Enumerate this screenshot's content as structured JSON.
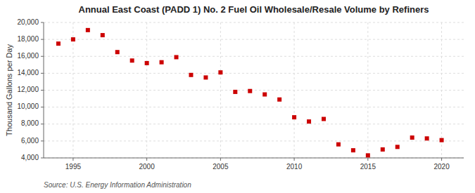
{
  "chart_data": {
    "type": "scatter",
    "title": "Annual East Coast (PADD 1) No. 2 Fuel Oil Wholesale/Resale Volume by Refiners",
    "ylabel": "Thousand Gallons per Day",
    "annotations": [
      "Source: U.S. Energy Information Administration"
    ],
    "x": [
      1994,
      1995,
      1996,
      1997,
      1998,
      1999,
      2000,
      2001,
      2002,
      2003,
      2004,
      2005,
      2006,
      2007,
      2008,
      2009,
      2010,
      2011,
      2012,
      2013,
      2014,
      2015,
      2016,
      2017,
      2018,
      2019,
      2020
    ],
    "values": [
      17500,
      18000,
      19100,
      18500,
      16500,
      15500,
      15200,
      15300,
      15900,
      13800,
      13500,
      14100,
      11800,
      11900,
      11500,
      10900,
      8800,
      8300,
      8600,
      5600,
      4900,
      4300,
      5000,
      5300,
      6400,
      6300,
      6100
    ],
    "color": "#cc0000",
    "marker": "square",
    "xlim": [
      1993.0,
      2021.5
    ],
    "xticks": [
      1995,
      2000,
      2005,
      2010,
      2015,
      2020
    ],
    "ylim": [
      4000,
      20000
    ],
    "yticks": [
      {
        "value": 4000,
        "label": "4,000"
      },
      {
        "value": 6000,
        "label": "6,000"
      },
      {
        "value": 8000,
        "label": "8,000"
      },
      {
        "value": 10000,
        "label": "10,000"
      },
      {
        "value": 12000,
        "label": "12,000"
      },
      {
        "value": 14000,
        "label": "14,000"
      },
      {
        "value": 16000,
        "label": "16,000"
      },
      {
        "value": 18000,
        "label": "18,000"
      },
      {
        "value": 20000,
        "label": "20,000"
      }
    ],
    "grid": true
  }
}
